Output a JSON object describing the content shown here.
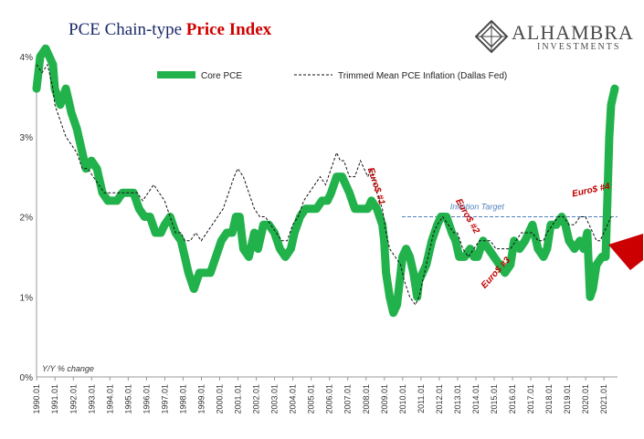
{
  "title": {
    "main": "PCE Chain-type ",
    "accent": "Price Index"
  },
  "brand": {
    "name": "ALHAMBRA",
    "sub": "INVESTMENTS"
  },
  "colors": {
    "core": "#22b24c",
    "trimmed": "#111111",
    "target": "#4f81bd",
    "annotation": "#c00000",
    "title": "#1b2a6b",
    "arrow": "#cc0000"
  },
  "chart_data": {
    "type": "line",
    "y_axis_note": "Y/Y % change",
    "ylim": [
      0,
      4
    ],
    "yticks": [
      "0%",
      "1%",
      "2%",
      "3%",
      "4%"
    ],
    "xlim": [
      1990.0,
      2021.75
    ],
    "xticks": [
      "1990.01",
      "1991.01",
      "1992.01",
      "1993.01",
      "1994.01",
      "1995.01",
      "1996.01",
      "1997.01",
      "1998.01",
      "1999.01",
      "2000.01",
      "2001.01",
      "2002.01",
      "2003.01",
      "2004.01",
      "2005.01",
      "2006.01",
      "2007.01",
      "2008.01",
      "2009.01",
      "2010.01",
      "2011.01",
      "2012.01",
      "2013.01",
      "2014.01",
      "2015.01",
      "2016.01",
      "2017.01",
      "2018.01",
      "2019.01",
      "2020.01",
      "2021.01"
    ],
    "legend": {
      "position": "top",
      "entries": [
        "Core PCE",
        "Trimmed Mean PCE Inflation (Dallas Fed)"
      ]
    },
    "target_line": {
      "value": 2.0,
      "label": "Inflation Target"
    },
    "annotations": [
      {
        "text": "Euro$ #1",
        "x": 2008.1,
        "y": 2.6,
        "angle": 72
      },
      {
        "text": "Euro$ #2",
        "x": 2012.9,
        "y": 2.2,
        "angle": 60
      },
      {
        "text": "Euro$ #3",
        "x": 2014.5,
        "y": 1.1,
        "angle": -48
      },
      {
        "text": "Euro$ #4",
        "x": 2019.3,
        "y": 2.25,
        "angle": -12
      }
    ],
    "series": [
      {
        "name": "Core PCE",
        "style": "thick-green",
        "points": [
          [
            1990.0,
            3.6
          ],
          [
            1990.2,
            4.0
          ],
          [
            1990.5,
            4.1
          ],
          [
            1990.9,
            3.9
          ],
          [
            1991.0,
            3.6
          ],
          [
            1991.3,
            3.4
          ],
          [
            1991.6,
            3.6
          ],
          [
            1991.9,
            3.3
          ],
          [
            1992.2,
            3.1
          ],
          [
            1992.4,
            2.9
          ],
          [
            1992.7,
            2.6
          ],
          [
            1993.0,
            2.7
          ],
          [
            1993.3,
            2.6
          ],
          [
            1993.6,
            2.3
          ],
          [
            1993.9,
            2.2
          ],
          [
            1994.1,
            2.2
          ],
          [
            1994.4,
            2.2
          ],
          [
            1994.7,
            2.3
          ],
          [
            1995.0,
            2.3
          ],
          [
            1995.3,
            2.3
          ],
          [
            1995.6,
            2.1
          ],
          [
            1995.9,
            2.0
          ],
          [
            1996.2,
            2.0
          ],
          [
            1996.5,
            1.8
          ],
          [
            1996.8,
            1.8
          ],
          [
            1997.0,
            1.9
          ],
          [
            1997.3,
            2.0
          ],
          [
            1997.6,
            1.8
          ],
          [
            1997.9,
            1.7
          ],
          [
            1998.1,
            1.5
          ],
          [
            1998.3,
            1.3
          ],
          [
            1998.6,
            1.1
          ],
          [
            1998.9,
            1.3
          ],
          [
            1999.2,
            1.3
          ],
          [
            1999.5,
            1.3
          ],
          [
            1999.8,
            1.5
          ],
          [
            2000.1,
            1.7
          ],
          [
            2000.4,
            1.8
          ],
          [
            2000.7,
            1.8
          ],
          [
            2000.9,
            2.0
          ],
          [
            2001.1,
            2.0
          ],
          [
            2001.3,
            1.6
          ],
          [
            2001.6,
            1.5
          ],
          [
            2001.9,
            1.8
          ],
          [
            2002.1,
            1.6
          ],
          [
            2002.4,
            1.9
          ],
          [
            2002.7,
            1.9
          ],
          [
            2003.0,
            1.8
          ],
          [
            2003.3,
            1.6
          ],
          [
            2003.6,
            1.5
          ],
          [
            2003.9,
            1.6
          ],
          [
            2004.1,
            1.8
          ],
          [
            2004.4,
            2.0
          ],
          [
            2004.7,
            2.1
          ],
          [
            2005.0,
            2.1
          ],
          [
            2005.3,
            2.1
          ],
          [
            2005.6,
            2.2
          ],
          [
            2005.9,
            2.2
          ],
          [
            2006.1,
            2.3
          ],
          [
            2006.4,
            2.5
          ],
          [
            2006.7,
            2.5
          ],
          [
            2006.9,
            2.4
          ],
          [
            2007.1,
            2.3
          ],
          [
            2007.4,
            2.1
          ],
          [
            2007.7,
            2.1
          ],
          [
            2007.9,
            2.1
          ],
          [
            2008.1,
            2.1
          ],
          [
            2008.3,
            2.2
          ],
          [
            2008.6,
            2.1
          ],
          [
            2008.9,
            1.9
          ],
          [
            2009.0,
            1.7
          ],
          [
            2009.1,
            1.3
          ],
          [
            2009.3,
            1.0
          ],
          [
            2009.5,
            0.8
          ],
          [
            2009.7,
            0.9
          ],
          [
            2009.8,
            1.1
          ],
          [
            2010.0,
            1.5
          ],
          [
            2010.2,
            1.6
          ],
          [
            2010.4,
            1.5
          ],
          [
            2010.6,
            1.3
          ],
          [
            2010.8,
            1.0
          ],
          [
            2010.9,
            1.2
          ],
          [
            2011.1,
            1.3
          ],
          [
            2011.3,
            1.4
          ],
          [
            2011.6,
            1.7
          ],
          [
            2011.9,
            1.9
          ],
          [
            2012.1,
            2.0
          ],
          [
            2012.4,
            2.0
          ],
          [
            2012.7,
            1.8
          ],
          [
            2012.9,
            1.7
          ],
          [
            2013.1,
            1.5
          ],
          [
            2013.4,
            1.5
          ],
          [
            2013.7,
            1.6
          ],
          [
            2013.9,
            1.5
          ],
          [
            2014.1,
            1.5
          ],
          [
            2014.4,
            1.7
          ],
          [
            2014.7,
            1.6
          ],
          [
            2015.0,
            1.5
          ],
          [
            2015.3,
            1.4
          ],
          [
            2015.6,
            1.3
          ],
          [
            2015.9,
            1.4
          ],
          [
            2016.1,
            1.7
          ],
          [
            2016.4,
            1.6
          ],
          [
            2016.7,
            1.7
          ],
          [
            2016.9,
            1.8
          ],
          [
            2017.1,
            1.9
          ],
          [
            2017.4,
            1.6
          ],
          [
            2017.7,
            1.5
          ],
          [
            2017.9,
            1.6
          ],
          [
            2018.1,
            1.9
          ],
          [
            2018.4,
            1.9
          ],
          [
            2018.7,
            2.0
          ],
          [
            2018.9,
            1.9
          ],
          [
            2019.1,
            1.7
          ],
          [
            2019.4,
            1.6
          ],
          [
            2019.7,
            1.7
          ],
          [
            2019.9,
            1.6
          ],
          [
            2020.1,
            1.8
          ],
          [
            2020.25,
            1.0
          ],
          [
            2020.4,
            1.1
          ],
          [
            2020.6,
            1.4
          ],
          [
            2020.9,
            1.5
          ],
          [
            2021.1,
            1.5
          ],
          [
            2021.3,
            3.0
          ],
          [
            2021.4,
            3.4
          ],
          [
            2021.6,
            3.6
          ]
        ]
      },
      {
        "name": "Trimmed Mean PCE Inflation (Dallas Fed)",
        "style": "dashed-black",
        "points": [
          [
            1990.0,
            3.9
          ],
          [
            1990.3,
            3.8
          ],
          [
            1990.6,
            3.9
          ],
          [
            1990.9,
            3.6
          ],
          [
            1991.0,
            3.4
          ],
          [
            1991.3,
            3.2
          ],
          [
            1991.6,
            3.0
          ],
          [
            1991.9,
            2.9
          ],
          [
            1992.2,
            2.8
          ],
          [
            1992.5,
            2.6
          ],
          [
            1992.8,
            2.6
          ],
          [
            1993.1,
            2.5
          ],
          [
            1993.4,
            2.4
          ],
          [
            1993.7,
            2.3
          ],
          [
            1994.0,
            2.3
          ],
          [
            1994.3,
            2.3
          ],
          [
            1994.6,
            2.3
          ],
          [
            1994.9,
            2.3
          ],
          [
            1995.2,
            2.3
          ],
          [
            1995.5,
            2.3
          ],
          [
            1995.8,
            2.2
          ],
          [
            1996.1,
            2.3
          ],
          [
            1996.4,
            2.4
          ],
          [
            1996.7,
            2.3
          ],
          [
            1997.0,
            2.2
          ],
          [
            1997.3,
            2.0
          ],
          [
            1997.6,
            1.8
          ],
          [
            1997.9,
            1.8
          ],
          [
            1998.1,
            1.7
          ],
          [
            1998.4,
            1.7
          ],
          [
            1998.7,
            1.8
          ],
          [
            1999.0,
            1.7
          ],
          [
            1999.3,
            1.8
          ],
          [
            1999.6,
            1.9
          ],
          [
            1999.9,
            2.0
          ],
          [
            2000.2,
            2.1
          ],
          [
            2000.5,
            2.3
          ],
          [
            2000.8,
            2.5
          ],
          [
            2001.0,
            2.6
          ],
          [
            2001.3,
            2.5
          ],
          [
            2001.6,
            2.3
          ],
          [
            2001.9,
            2.1
          ],
          [
            2002.2,
            2.0
          ],
          [
            2002.5,
            2.0
          ],
          [
            2002.8,
            1.9
          ],
          [
            2003.1,
            1.8
          ],
          [
            2003.4,
            1.7
          ],
          [
            2003.7,
            1.7
          ],
          [
            2004.0,
            1.9
          ],
          [
            2004.3,
            2.0
          ],
          [
            2004.6,
            2.2
          ],
          [
            2004.9,
            2.3
          ],
          [
            2005.2,
            2.4
          ],
          [
            2005.5,
            2.5
          ],
          [
            2005.8,
            2.4
          ],
          [
            2006.1,
            2.6
          ],
          [
            2006.4,
            2.8
          ],
          [
            2006.6,
            2.7
          ],
          [
            2006.8,
            2.7
          ],
          [
            2007.1,
            2.5
          ],
          [
            2007.4,
            2.5
          ],
          [
            2007.7,
            2.7
          ],
          [
            2007.9,
            2.6
          ],
          [
            2008.1,
            2.5
          ],
          [
            2008.3,
            2.6
          ],
          [
            2008.6,
            2.3
          ],
          [
            2008.9,
            2.1
          ],
          [
            2009.1,
            1.8
          ],
          [
            2009.3,
            1.6
          ],
          [
            2009.6,
            1.5
          ],
          [
            2009.9,
            1.4
          ],
          [
            2010.1,
            1.2
          ],
          [
            2010.4,
            1.0
          ],
          [
            2010.7,
            0.9
          ],
          [
            2010.9,
            1.0
          ],
          [
            2011.1,
            1.2
          ],
          [
            2011.4,
            1.5
          ],
          [
            2011.7,
            1.8
          ],
          [
            2011.9,
            1.9
          ],
          [
            2012.2,
            2.0
          ],
          [
            2012.5,
            1.9
          ],
          [
            2012.8,
            1.8
          ],
          [
            2013.0,
            1.8
          ],
          [
            2013.3,
            1.6
          ],
          [
            2013.6,
            1.5
          ],
          [
            2013.9,
            1.6
          ],
          [
            2014.2,
            1.7
          ],
          [
            2014.5,
            1.7
          ],
          [
            2014.8,
            1.7
          ],
          [
            2015.1,
            1.6
          ],
          [
            2015.4,
            1.6
          ],
          [
            2015.7,
            1.6
          ],
          [
            2015.9,
            1.6
          ],
          [
            2016.2,
            1.7
          ],
          [
            2016.5,
            1.8
          ],
          [
            2016.8,
            1.8
          ],
          [
            2017.1,
            1.8
          ],
          [
            2017.4,
            1.7
          ],
          [
            2017.7,
            1.7
          ],
          [
            2017.9,
            1.8
          ],
          [
            2018.2,
            1.9
          ],
          [
            2018.5,
            2.0
          ],
          [
            2018.8,
            2.0
          ],
          [
            2019.1,
            1.9
          ],
          [
            2019.4,
            1.9
          ],
          [
            2019.7,
            2.0
          ],
          [
            2020.0,
            2.0
          ],
          [
            2020.2,
            1.9
          ],
          [
            2020.4,
            1.8
          ],
          [
            2020.6,
            1.7
          ],
          [
            2020.8,
            1.7
          ],
          [
            2021.0,
            1.8
          ],
          [
            2021.2,
            1.9
          ],
          [
            2021.4,
            2.0
          ]
        ]
      }
    ]
  }
}
